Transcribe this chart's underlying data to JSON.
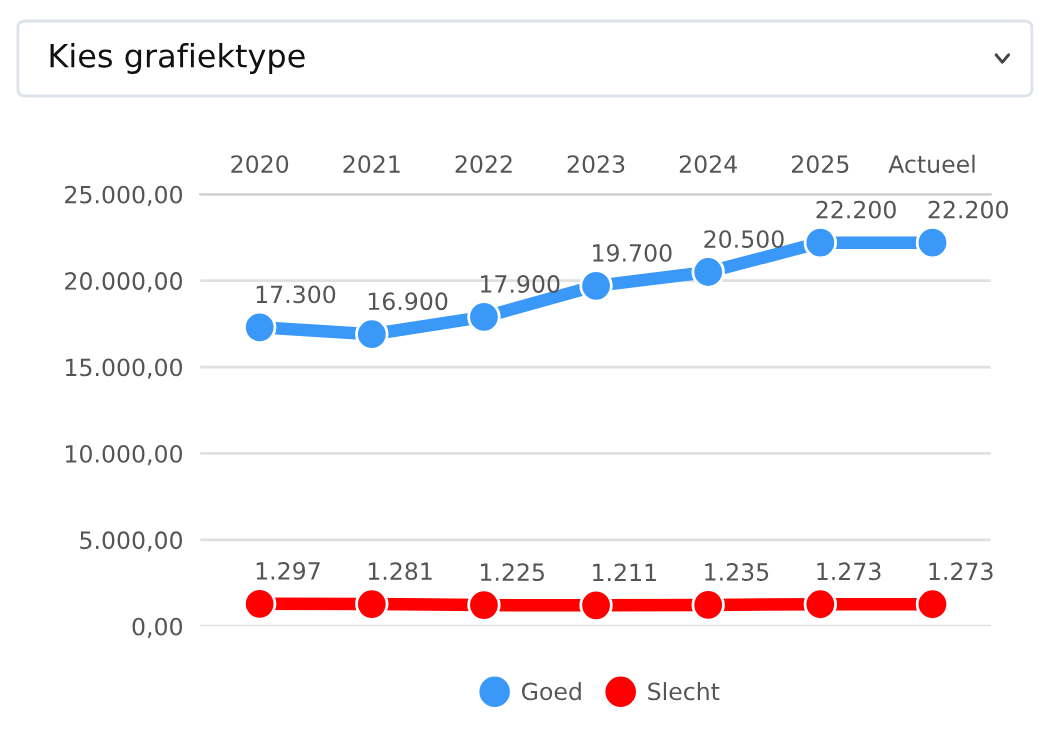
{
  "chart_data": {
    "type": "line",
    "title": "Kies grafiektype",
    "categories": [
      "2020",
      "2021",
      "2022",
      "2023",
      "2024",
      "2025",
      "Actueel"
    ],
    "series": [
      {
        "name": "Goed",
        "color": "#3a99f8",
        "values": [
          17300,
          16900,
          17900,
          19700,
          20500,
          22200,
          22200
        ],
        "value_labels": [
          "17.300",
          "16.900",
          "17.900",
          "19.700",
          "20.500",
          "22.200",
          "22.200"
        ]
      },
      {
        "name": "Slecht",
        "color": "#ff0000",
        "values": [
          1297,
          1281,
          1225,
          1211,
          1235,
          1273,
          1273
        ],
        "value_labels": [
          "1.297",
          "1.281",
          "1.225",
          "1.211",
          "1.235",
          "1.273",
          "1.273"
        ]
      }
    ],
    "ylim": [
      0,
      25000
    ],
    "yticks": [
      {
        "value": 0,
        "label": "0,00"
      },
      {
        "value": 5000,
        "label": "5.000,00"
      },
      {
        "value": 10000,
        "label": "10.000,00"
      },
      {
        "value": 15000,
        "label": "15.000,00"
      },
      {
        "value": 20000,
        "label": "20.000,00"
      },
      {
        "value": 25000,
        "label": "25.000,00"
      }
    ],
    "grid": "y",
    "legend": "bottom",
    "marker": "circle",
    "line_style": "solid"
  }
}
